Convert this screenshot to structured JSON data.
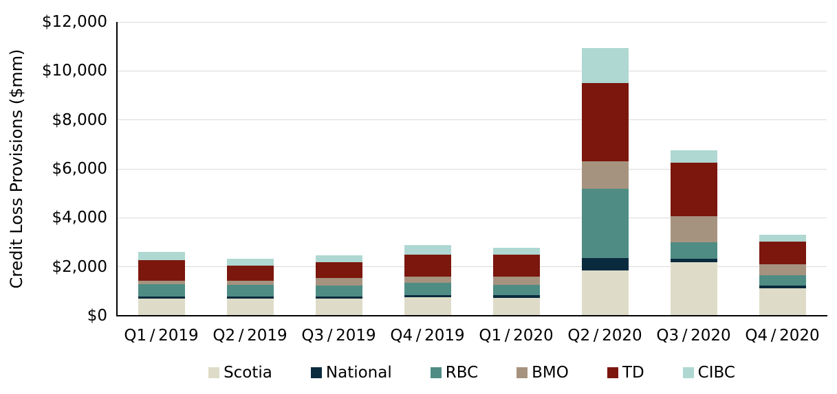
{
  "chart_data": {
    "type": "bar",
    "stacked": true,
    "title": "",
    "xlabel": "",
    "ylabel": "Credit Loss Provisions ($mm)",
    "ylim": [
      0,
      12000
    ],
    "ytick_step": 2000,
    "ytick_labels": [
      "$0",
      "$2,000",
      "$4,000",
      "$6,000",
      "$8,000",
      "$10,000",
      "$12,000"
    ],
    "grid": true,
    "legend_position": "bottom",
    "categories": [
      "Q1 / 2019",
      "Q2 / 2019",
      "Q3 / 2019",
      "Q4 / 2019",
      "Q1 / 2020",
      "Q2 / 2020",
      "Q3 / 2020",
      "Q4 / 2020"
    ],
    "series": [
      {
        "name": "Scotia",
        "color": "#dedcc8",
        "values": [
          688,
          700,
          713,
          753,
          740,
          1846,
          2181,
          1131
        ]
      },
      {
        "name": "National",
        "color": "#0a2a3e",
        "values": [
          88,
          90,
          86,
          89,
          100,
          504,
          143,
          110
        ]
      },
      {
        "name": "RBC",
        "color": "#4e8c84",
        "values": [
          514,
          460,
          425,
          499,
          420,
          2830,
          675,
          427
        ]
      },
      {
        "name": "BMO",
        "color": "#a6937f",
        "values": [
          137,
          190,
          306,
          253,
          350,
          1118,
          1054,
          432
        ]
      },
      {
        "name": "TD",
        "color": "#7b170d",
        "values": [
          850,
          620,
          655,
          891,
          880,
          3218,
          2188,
          917
        ]
      },
      {
        "name": "CIBC",
        "color": "#aed8d1",
        "values": [
          338,
          280,
          291,
          402,
          290,
          1412,
          525,
          291
        ]
      }
    ],
    "colors": {
      "axis": "#000000",
      "gridline": "#d9d9d9",
      "text": "#000000",
      "background": "#ffffff"
    }
  }
}
